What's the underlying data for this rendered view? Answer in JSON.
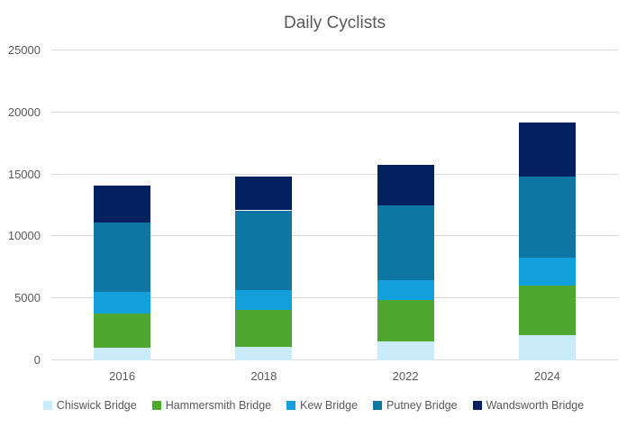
{
  "chart_data": {
    "type": "bar",
    "stacked": true,
    "title": "Daily Cyclists",
    "categories": [
      "2016",
      "2018",
      "2022",
      "2024"
    ],
    "series": [
      {
        "name": "Chiswick Bridge",
        "color": "#C9EBFA",
        "values": [
          1000,
          1100,
          1500,
          2000
        ]
      },
      {
        "name": "Hammersmith Bridge",
        "color": "#4EA72E",
        "values": [
          2800,
          3000,
          3400,
          4000
        ]
      },
      {
        "name": "Kew Bridge",
        "color": "#129FDB",
        "values": [
          1700,
          1600,
          1600,
          2300
        ]
      },
      {
        "name": "Putney Bridge",
        "color": "#0E76A3",
        "values": [
          5600,
          6400,
          6000,
          6500
        ]
      },
      {
        "name": "Wandsworth Bridge",
        "color": "#032060",
        "values": [
          3000,
          2700,
          3300,
          4400
        ]
      }
    ],
    "totals": [
      14100,
      14800,
      15800,
      19200
    ],
    "xlabel": "",
    "ylabel": "",
    "ylim": [
      0,
      25000
    ],
    "ytick_step": 5000,
    "yticks": [
      "0",
      "5000",
      "10000",
      "15000",
      "20000",
      "25000"
    ],
    "grid": true,
    "legend_position": "bottom",
    "colors": {
      "text": "#595959",
      "gridline": "#D9D9D9",
      "background": "#FFFFFF"
    }
  }
}
